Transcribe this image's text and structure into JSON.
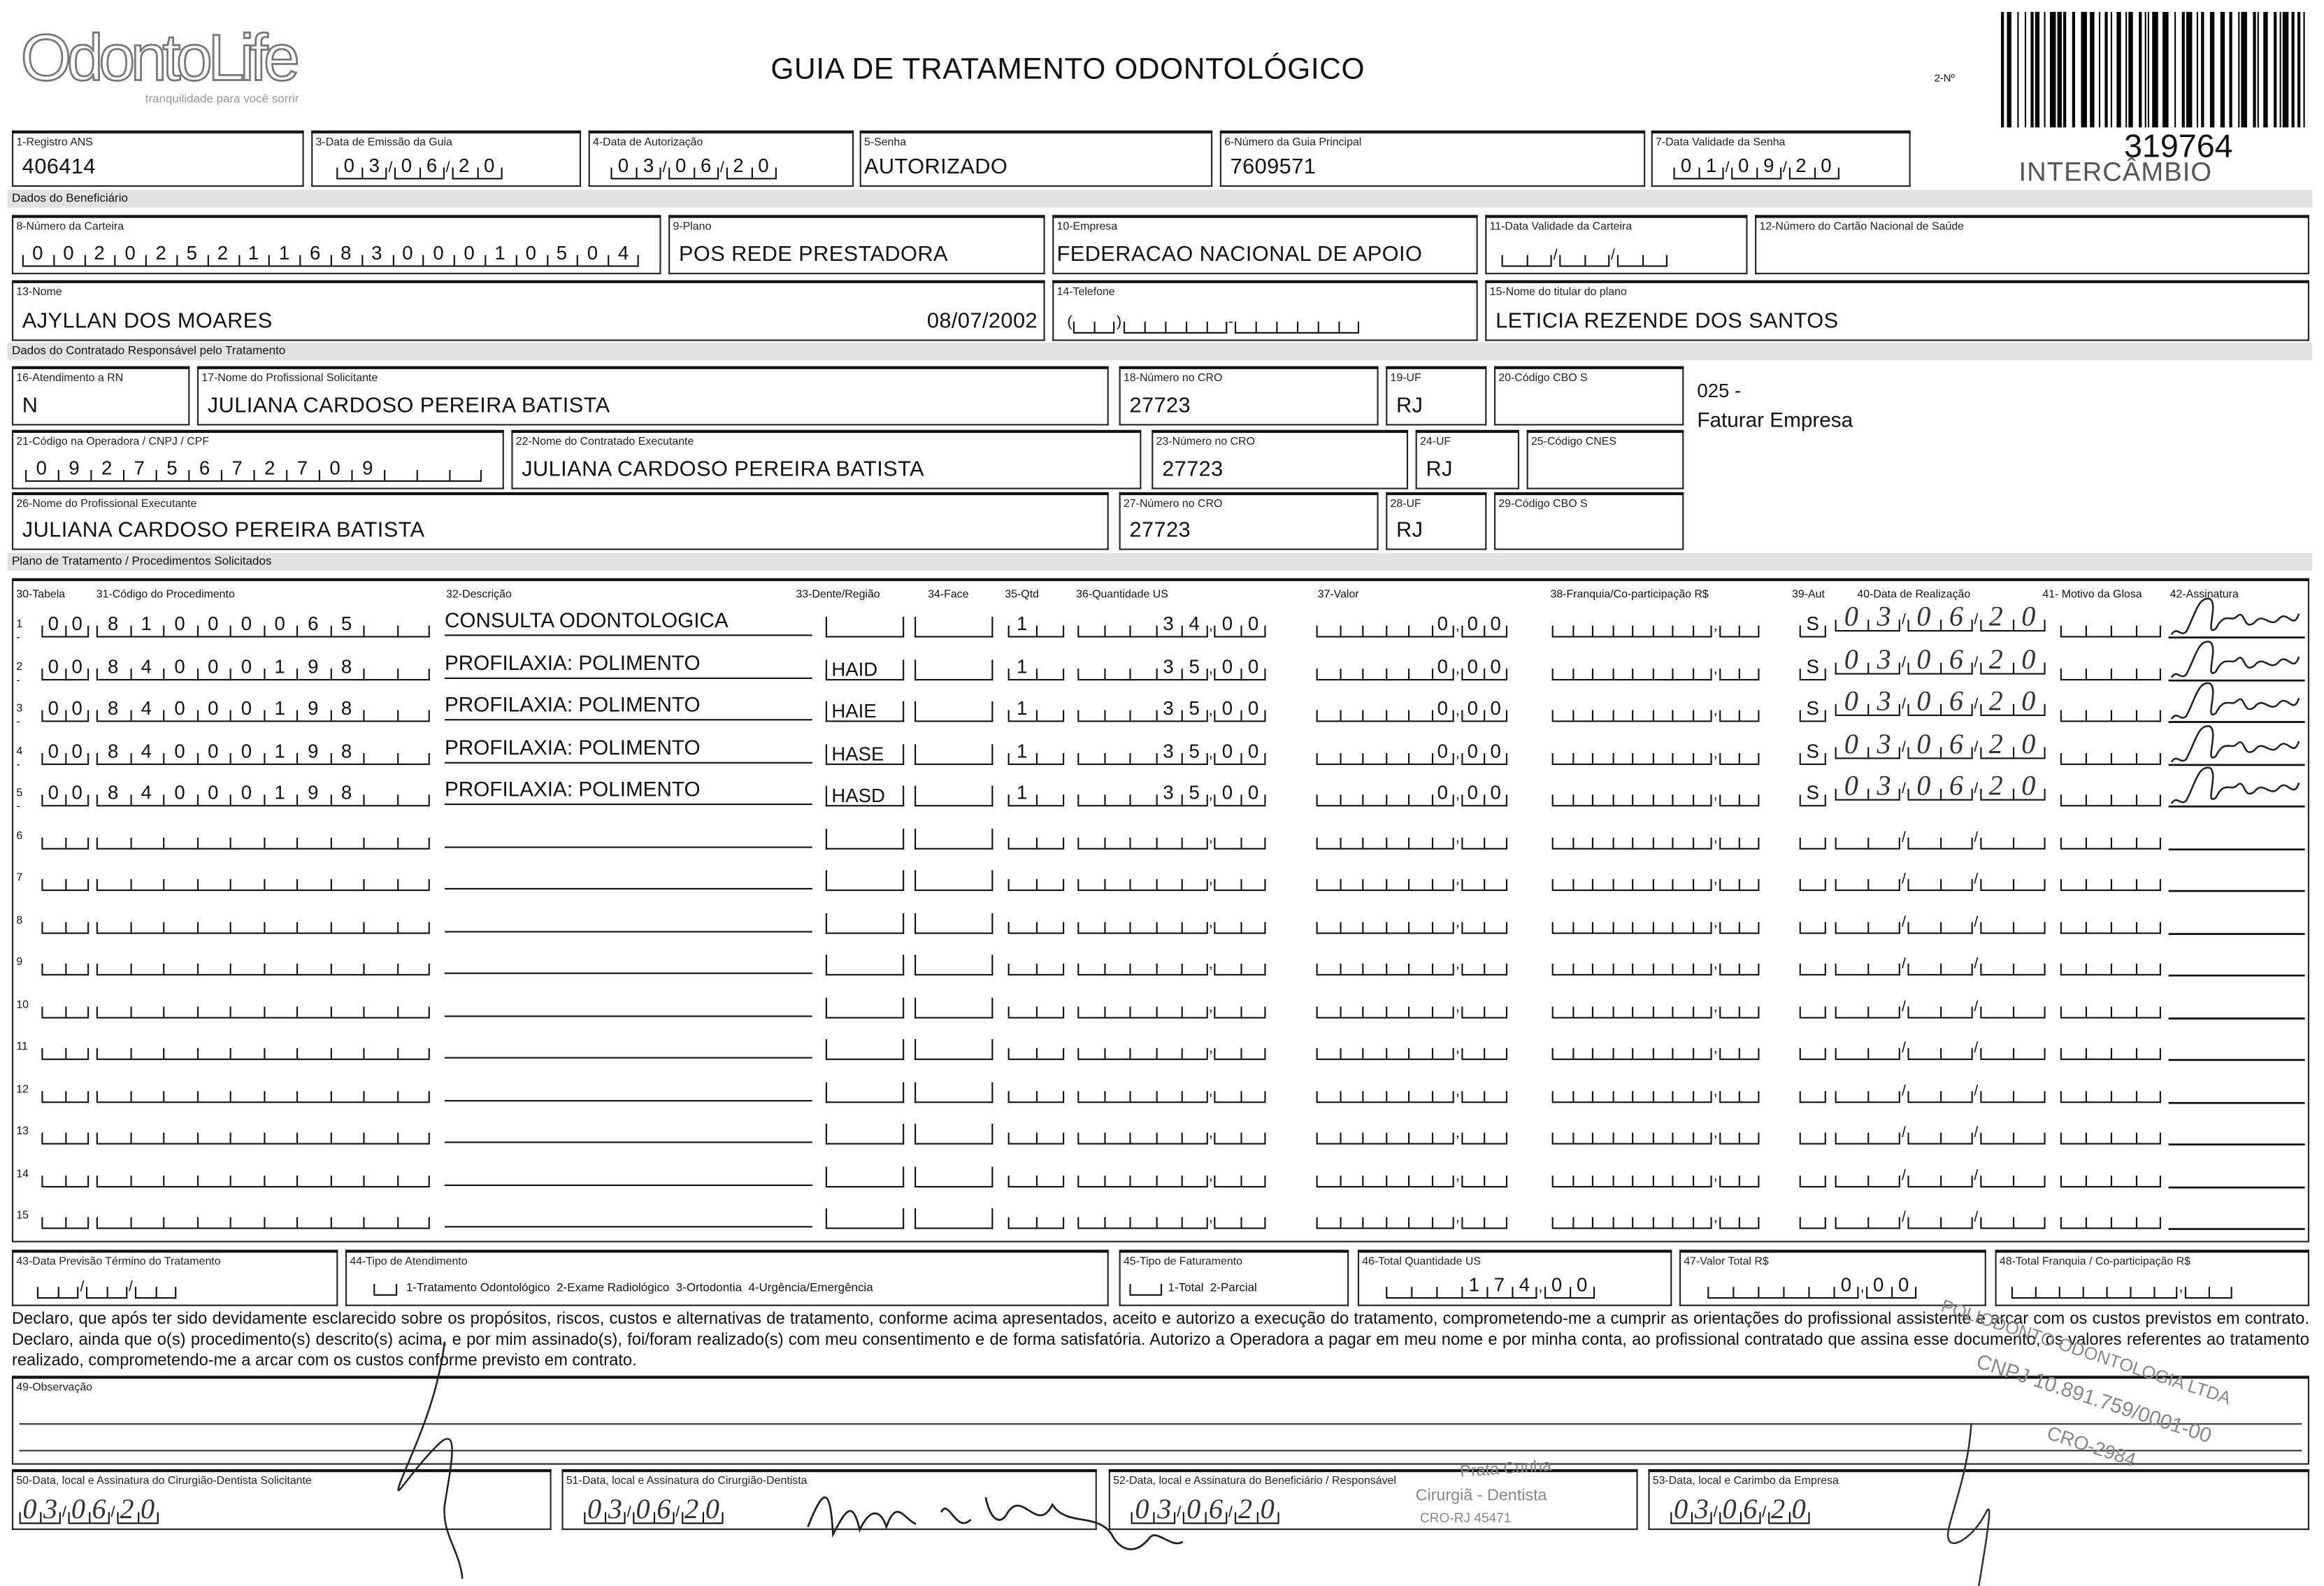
{
  "header": {
    "logo_text": "OdontoLife",
    "logo_tagline": "tranquilidade para você sorrir",
    "title": "GUIA DE TRATAMENTO ODONTOLÓGICO",
    "numero_label": "2-Nº",
    "guide_number": "319764",
    "intercambio": "INTERCÂMBIO"
  },
  "fields": {
    "registro_ans": {
      "label": "1-Registro ANS",
      "value": "406414"
    },
    "data_emissao": {
      "label": "3-Data de Emissão da Guia",
      "value": "03/06/20"
    },
    "data_autorizacao": {
      "label": "4-Data de Autorização",
      "value": "03/06/20"
    },
    "senha": {
      "label": "5-Senha",
      "value": "AUTORIZADO"
    },
    "guia_principal": {
      "label": "6-Número da Guia Principal",
      "value": "7609571"
    },
    "validade_senha": {
      "label": "7-Data Validade da Senha",
      "value": "01/09/20"
    }
  },
  "beneficiario": {
    "section_title": "Dados do Beneficiário",
    "carteira": {
      "label": "8-Número da Carteira",
      "value": "00202521168300010504"
    },
    "plano": {
      "label": "9-Plano",
      "value": "POS REDE PRESTADORA"
    },
    "empresa": {
      "label": "10-Empresa",
      "value": "FEDERACAO NACIONAL DE APOIO"
    },
    "validade_carteira": {
      "label": "11-Data Validade da Carteira",
      "value": ""
    },
    "cartao_nacional": {
      "label": "12-Número do Cartão Nacional de Saúde",
      "value": ""
    },
    "nome": {
      "label": "13-Nome",
      "value": "AJYLLAN DOS MOARES",
      "birth_date": "08/07/2002"
    },
    "telefone": {
      "label": "14-Telefone",
      "value": ""
    },
    "titular": {
      "label": "15-Nome do titular do plano",
      "value": "LETICIA REZENDE DOS SANTOS"
    }
  },
  "contratado": {
    "section_title": "Dados do Contratado Responsável pelo Tratamento",
    "atendimento_rn": {
      "label": "16-Atendimento a RN",
      "value": "N"
    },
    "profissional_solicitante": {
      "label": "17-Nome do Profissional Solicitante",
      "value": "JULIANA CARDOSO PEREIRA BATISTA"
    },
    "cro_solicitante": {
      "label": "18-Número no CRO",
      "value": "27723"
    },
    "uf_solicitante": {
      "label": "19-UF",
      "value": "RJ"
    },
    "cbo_solicitante": {
      "label": "20-Código CBO S",
      "value": ""
    },
    "note_code": "025 -",
    "note_text": "Faturar Empresa",
    "codigo_operadora": {
      "label": "21-Código na Operadora / CNPJ / CPF",
      "value": "09275672709"
    },
    "contratado_executante": {
      "label": "22-Nome do Contratado Executante",
      "value": "JULIANA CARDOSO PEREIRA BATISTA"
    },
    "cro_contratado": {
      "label": "23-Número no CRO",
      "value": "27723"
    },
    "uf_contratado": {
      "label": "24-UF",
      "value": "RJ"
    },
    "cnes": {
      "label": "25-Código CNES",
      "value": ""
    },
    "profissional_executante": {
      "label": "26-Nome do Profissional Executante",
      "value": "JULIANA CARDOSO PEREIRA BATISTA"
    },
    "cro_executante": {
      "label": "27-Número no CRO",
      "value": "27723"
    },
    "uf_executante": {
      "label": "28-UF",
      "value": "RJ"
    },
    "cbo_executante": {
      "label": "29-Código CBO S",
      "value": ""
    }
  },
  "procedimentos": {
    "section_title": "Plano de Tratamento / Procedimentos Solicitados",
    "headers": {
      "tabela": "30-Tabela",
      "codigo": "31-Código do Procedimento",
      "descricao": "32-Descrição",
      "dente": "33-Dente/Região",
      "face": "34-Face",
      "qtd": "35-Qtd",
      "qtd_us": "36-Quantidade US",
      "valor": "37-Valor",
      "franquia": "38-Franquia/Co-participação R$",
      "aut": "39-Aut",
      "data": "40-Data de Realização",
      "glosa": "41- Motivo da Glosa",
      "assinatura": "42-Assinatura"
    },
    "rows": [
      {
        "n": "1 -",
        "tabela": "00",
        "codigo": "81000065",
        "descricao": "CONSULTA ODONTOLOGICA",
        "dente": "",
        "face": "",
        "qtd": "1",
        "qtd_us": "34,00",
        "valor": "0,00",
        "franquia": "",
        "aut": "S",
        "data": "03/06/20",
        "glosa": "",
        "signed": true
      },
      {
        "n": "2 -",
        "tabela": "00",
        "codigo": "84000198",
        "descricao": "PROFILAXIA: POLIMENTO",
        "dente": "HAID",
        "face": "",
        "qtd": "1",
        "qtd_us": "35,00",
        "valor": "0,00",
        "franquia": "",
        "aut": "S",
        "data": "03/06/20",
        "glosa": "",
        "signed": true
      },
      {
        "n": "3 -",
        "tabela": "00",
        "codigo": "84000198",
        "descricao": "PROFILAXIA: POLIMENTO",
        "dente": "HAIE",
        "face": "",
        "qtd": "1",
        "qtd_us": "35,00",
        "valor": "0,00",
        "franquia": "",
        "aut": "S",
        "data": "03/06/20",
        "glosa": "",
        "signed": true
      },
      {
        "n": "4 -",
        "tabela": "00",
        "codigo": "84000198",
        "descricao": "PROFILAXIA: POLIMENTO",
        "dente": "HASE",
        "face": "",
        "qtd": "1",
        "qtd_us": "35,00",
        "valor": "0,00",
        "franquia": "",
        "aut": "S",
        "data": "03/06/20",
        "glosa": "",
        "signed": true
      },
      {
        "n": "5 -",
        "tabela": "00",
        "codigo": "84000198",
        "descricao": "PROFILAXIA: POLIMENTO",
        "dente": "HASD",
        "face": "",
        "qtd": "1",
        "qtd_us": "35,00",
        "valor": "0,00",
        "franquia": "",
        "aut": "S",
        "data": "03/06/20",
        "glosa": "",
        "signed": true
      },
      {
        "n": "6"
      },
      {
        "n": "7"
      },
      {
        "n": "8"
      },
      {
        "n": "9"
      },
      {
        "n": "10"
      },
      {
        "n": "11"
      },
      {
        "n": "12"
      },
      {
        "n": "13"
      },
      {
        "n": "14"
      },
      {
        "n": "15"
      }
    ]
  },
  "totais": {
    "previsao_termino": {
      "label": "43-Data Previsão Término do Tratamento",
      "value": ""
    },
    "tipo_atendimento": {
      "label": "44-Tipo de Atendimento",
      "value": "",
      "options": "1-Tratamento Odontológico  2-Exame Radiológico  3-Ortodontia  4-Urgência/Emergência"
    },
    "tipo_faturamento": {
      "label": "45-Tipo de Faturamento",
      "value": "",
      "options": "1-Total  2-Parcial"
    },
    "total_us": {
      "label": "46-Total Quantidade US",
      "value": "174,00"
    },
    "valor_total": {
      "label": "47-Valor Total R$",
      "value": "0,00"
    },
    "total_franquia": {
      "label": "48-Total Franquia / Co-participação R$",
      "value": ""
    }
  },
  "declaracao": "Declaro, que após ter sido devidamente esclarecido sobre os propósitos, riscos, custos e alternativas de tratamento, conforme acima apresentados, aceito e autorizo a execução do tratamento, comprometendo-me a cumprir as orientações do profissional assistente e arcar com os custos previstos em contrato. Declaro, ainda que o(s) procedimento(s) descrito(s) acima, e por mim assinado(s), foi/foram realizado(s) com meu consentimento e de forma satisfatória. Autorizo a Operadora a pagar em meu nome e por minha conta, ao profissional contratado que assina esse documento, os valores referentes ao tratamento realizado, comprometendo-me a arcar com os custos conforme previsto em contrato.",
  "observacao": {
    "label": "49-Observação",
    "value": ""
  },
  "assinaturas": {
    "solicitante": {
      "label": "50-Data, local e Assinatura do Cirurgião-Dentista Solicitante",
      "date": "03/06/20"
    },
    "dentista": {
      "label": "51-Data, local e Assinatura do Cirurgião-Dentista",
      "date": "03/06/20"
    },
    "beneficiario": {
      "label": "52-Data, local e Assinatura do Beneficiário / Responsável",
      "date": "03/06/20"
    },
    "empresa": {
      "label": "53-Data, local e Carimbo da Empresa",
      "date": "03/06/20"
    }
  },
  "stamps": {
    "company": "POLIODONTO ODONTOLOGIA LTDA",
    "cnpj": "CNPJ 10.891.759/0001-00",
    "cro": "CRO-2984",
    "dentist_name": "Prata Cunha",
    "dentist_title": "Cirurgiã - Dentista",
    "dentist_cro": "CRO-RJ 45471"
  }
}
